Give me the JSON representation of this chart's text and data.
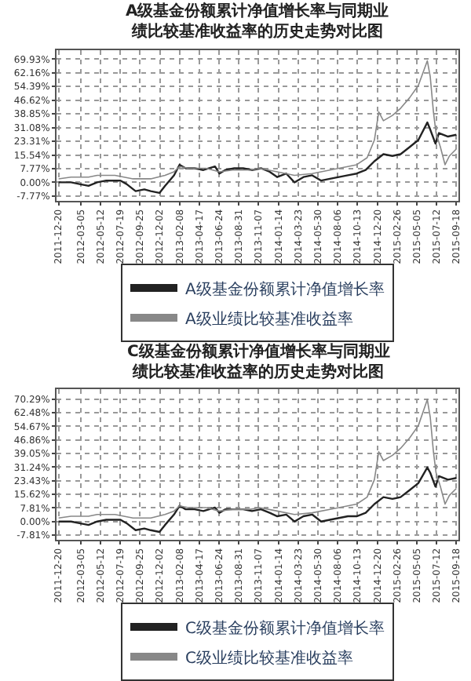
{
  "chart_data": [
    {
      "type": "line",
      "title": "A级基金份额累计净值增长率与同期业绩比较基准收益率的历史走势对比图",
      "grid": true,
      "legend": "bottom",
      "marker": "none",
      "line_style": "solid",
      "xlim": [
        "2011-12-13",
        "2015-09-25"
      ],
      "xticks": [
        "2011-12-20",
        "2012-03-05",
        "2012-05-12",
        "2012-07-19",
        "2012-09-25",
        "2012-12-02",
        "2013-02-08",
        "2013-04-17",
        "2013-06-24",
        "2013-08-31",
        "2013-11-07",
        "2014-01-14",
        "2014-03-23",
        "2014-05-30",
        "2014-08-06",
        "2014-10-13",
        "2014-12-20",
        "2015-02-26",
        "2015-05-05",
        "2015-07-12",
        "2015-09-18"
      ],
      "ylim": [
        -10.5,
        75
      ],
      "yticks": [
        {
          "value": -7.77,
          "label": "-7.77%"
        },
        {
          "value": 0,
          "label": "0.00%"
        },
        {
          "value": 7.77,
          "label": "7.77%"
        },
        {
          "value": 15.54,
          "label": "15.54%"
        },
        {
          "value": 23.31,
          "label": "23.31%"
        },
        {
          "value": 31.08,
          "label": "31.08%"
        },
        {
          "value": 38.85,
          "label": "38.85%"
        },
        {
          "value": 46.62,
          "label": "46.62%"
        },
        {
          "value": 54.39,
          "label": "54.39%"
        },
        {
          "value": 62.16,
          "label": "62.16%"
        },
        {
          "value": 69.93,
          "label": "69.93%"
        }
      ],
      "series": [
        {
          "name": "A级基金份额累计净值增长率",
          "color": "#222222",
          "x": [
            "2011-12-20",
            "2012-02-01",
            "2012-03-01",
            "2012-04-01",
            "2012-05-01",
            "2012-06-01",
            "2012-07-20",
            "2012-08-10",
            "2012-09-10",
            "2012-10-10",
            "2012-11-01",
            "2012-12-01",
            "2012-12-20",
            "2013-01-20",
            "2013-02-08",
            "2013-03-01",
            "2013-04-01",
            "2013-05-01",
            "2013-06-10",
            "2013-06-25",
            "2013-07-15",
            "2013-08-15",
            "2013-09-15",
            "2013-10-15",
            "2013-11-15",
            "2013-12-15",
            "2014-01-10",
            "2014-02-10",
            "2014-03-10",
            "2014-04-10",
            "2014-05-10",
            "2014-06-10",
            "2014-07-10",
            "2014-08-10",
            "2014-09-10",
            "2014-10-10",
            "2014-11-10",
            "2014-12-10",
            "2015-01-10",
            "2015-02-10",
            "2015-03-10",
            "2015-04-10",
            "2015-05-10",
            "2015-06-10",
            "2015-06-20",
            "2015-07-08",
            "2015-07-20",
            "2015-08-20",
            "2015-09-18"
          ],
          "values": [
            0,
            0,
            -1,
            -2,
            0,
            1,
            1,
            -1,
            -5,
            -4,
            -5,
            -6,
            -2,
            4,
            10,
            8,
            8,
            7,
            9,
            5,
            7,
            8,
            8,
            7,
            8,
            6,
            3,
            5,
            0,
            3,
            4,
            1,
            2,
            3,
            4,
            5,
            7,
            12,
            16,
            15,
            16,
            20,
            24,
            34,
            30,
            22,
            28,
            26,
            27
          ]
        },
        {
          "name": "A级业绩比较基准收益率",
          "color": "#888888",
          "x": [
            "2011-12-20",
            "2012-02-01",
            "2012-04-01",
            "2012-05-01",
            "2012-07-01",
            "2012-09-01",
            "2012-11-01",
            "2012-12-20",
            "2013-01-20",
            "2013-02-08",
            "2013-03-10",
            "2013-05-10",
            "2013-06-25",
            "2013-08-10",
            "2013-10-10",
            "2013-11-10",
            "2014-01-10",
            "2014-03-10",
            "2014-05-10",
            "2014-07-10",
            "2014-09-10",
            "2014-10-10",
            "2014-11-15",
            "2014-12-10",
            "2014-12-25",
            "2015-01-10",
            "2015-02-10",
            "2015-03-10",
            "2015-04-10",
            "2015-05-10",
            "2015-06-10",
            "2015-06-20",
            "2015-07-01",
            "2015-07-10",
            "2015-07-25",
            "2015-08-10",
            "2015-08-25",
            "2015-09-18"
          ],
          "values": [
            2,
            3,
            3,
            4,
            4,
            2,
            2,
            4,
            6,
            9,
            8,
            8,
            6,
            7,
            7,
            8,
            6,
            4,
            5,
            7,
            9,
            10,
            14,
            24,
            40,
            35,
            38,
            42,
            48,
            55,
            69,
            60,
            40,
            28,
            20,
            10,
            15,
            19
          ]
        }
      ]
    },
    {
      "type": "line",
      "title": "C级基金份额累计净值增长率与同期业绩比较基准收益率的历史走势对比图",
      "grid": true,
      "legend": "bottom",
      "marker": "none",
      "line_style": "solid",
      "xlim": [
        "2011-12-13",
        "2015-09-25"
      ],
      "xticks": [
        "2011-12-20",
        "2012-03-05",
        "2012-05-12",
        "2012-07-19",
        "2012-09-25",
        "2012-12-02",
        "2013-02-08",
        "2013-04-17",
        "2013-06-24",
        "2013-08-31",
        "2013-11-07",
        "2014-01-14",
        "2014-03-23",
        "2014-05-30",
        "2014-08-06",
        "2014-10-13",
        "2014-12-20",
        "2015-02-26",
        "2015-05-05",
        "2015-07-12",
        "2015-09-18"
      ],
      "ylim": [
        -10.5,
        76
      ],
      "yticks": [
        {
          "value": -7.81,
          "label": "-7.81%"
        },
        {
          "value": 0,
          "label": "0.00%"
        },
        {
          "value": 7.81,
          "label": "7.81%"
        },
        {
          "value": 15.62,
          "label": "15.62%"
        },
        {
          "value": 23.43,
          "label": "23.43%"
        },
        {
          "value": 31.24,
          "label": "31.24%"
        },
        {
          "value": 39.05,
          "label": "39.05%"
        },
        {
          "value": 46.86,
          "label": "46.86%"
        },
        {
          "value": 54.67,
          "label": "54.67%"
        },
        {
          "value": 62.48,
          "label": "62.48%"
        },
        {
          "value": 70.29,
          "label": "70.29%"
        }
      ],
      "series": [
        {
          "name": "C级基金份额累计净值增长率",
          "color": "#222222",
          "x": [
            "2011-12-20",
            "2012-02-01",
            "2012-03-01",
            "2012-04-01",
            "2012-05-01",
            "2012-06-01",
            "2012-07-20",
            "2012-08-10",
            "2012-09-10",
            "2012-10-10",
            "2012-11-01",
            "2012-12-01",
            "2012-12-20",
            "2013-01-20",
            "2013-02-08",
            "2013-03-01",
            "2013-04-01",
            "2013-05-01",
            "2013-06-10",
            "2013-06-25",
            "2013-07-15",
            "2013-08-15",
            "2013-09-15",
            "2013-10-15",
            "2013-11-15",
            "2013-12-15",
            "2014-01-10",
            "2014-02-10",
            "2014-03-10",
            "2014-04-10",
            "2014-05-10",
            "2014-06-10",
            "2014-07-10",
            "2014-08-10",
            "2014-09-10",
            "2014-10-10",
            "2014-11-10",
            "2014-12-10",
            "2015-01-10",
            "2015-02-10",
            "2015-03-10",
            "2015-04-10",
            "2015-05-10",
            "2015-06-10",
            "2015-06-20",
            "2015-07-08",
            "2015-07-20",
            "2015-08-20",
            "2015-09-18"
          ],
          "values": [
            0,
            0,
            -1,
            -2,
            0,
            1,
            1,
            -1,
            -5,
            -4,
            -5,
            -6,
            -2,
            4,
            9,
            7,
            7,
            6,
            8,
            5,
            7,
            7,
            7,
            6,
            7,
            5,
            3,
            4,
            0,
            3,
            4,
            0,
            1,
            2,
            3,
            3,
            5,
            10,
            14,
            13,
            14,
            18,
            22,
            31,
            28,
            20,
            26,
            24,
            25
          ]
        },
        {
          "name": "C级业绩比较基准收益率",
          "color": "#888888",
          "x": [
            "2011-12-20",
            "2012-02-01",
            "2012-04-01",
            "2012-05-01",
            "2012-07-01",
            "2012-09-01",
            "2012-11-01",
            "2012-12-20",
            "2013-01-20",
            "2013-02-08",
            "2013-03-10",
            "2013-05-10",
            "2013-06-25",
            "2013-08-10",
            "2013-10-10",
            "2013-11-10",
            "2014-01-10",
            "2014-03-10",
            "2014-05-10",
            "2014-07-10",
            "2014-09-10",
            "2014-10-10",
            "2014-11-15",
            "2014-12-10",
            "2014-12-25",
            "2015-01-10",
            "2015-02-10",
            "2015-03-10",
            "2015-04-10",
            "2015-05-10",
            "2015-06-10",
            "2015-06-20",
            "2015-07-01",
            "2015-07-10",
            "2015-07-25",
            "2015-08-10",
            "2015-08-25",
            "2015-09-18"
          ],
          "values": [
            2,
            3,
            3,
            4,
            4,
            2,
            2,
            4,
            6,
            9,
            8,
            8,
            6,
            7,
            7,
            8,
            6,
            4,
            5,
            7,
            9,
            10,
            14,
            24,
            40,
            35,
            38,
            42,
            48,
            55,
            70,
            60,
            40,
            28,
            20,
            10,
            15,
            19
          ]
        }
      ]
    }
  ]
}
